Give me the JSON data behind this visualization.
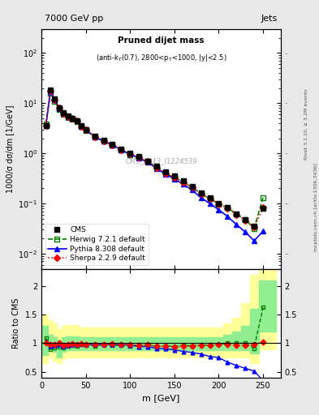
{
  "title_main": "Pruned dijet mass",
  "title_sub": "(anti-k_{T}(0.7), 2800<p_{T}<1000, |y|<2.5)",
  "header_left": "7000 GeV pp",
  "header_right": "Jets",
  "watermark": "CMS_2013_I1224539",
  "ylabel_main": "1000/σ dσ/dm [1/GeV]",
  "ylabel_ratio": "Ratio to CMS",
  "xlabel": "m [GeV]",
  "rivet_label": "Rivet 3.1.10, ≥ 3.2M events",
  "mcplots_label": "mcplots.cern.ch [arXiv:1306.3436]",
  "cms_x": [
    5,
    10,
    15,
    20,
    25,
    30,
    35,
    40,
    45,
    50,
    60,
    70,
    80,
    90,
    100,
    110,
    120,
    130,
    140,
    150,
    160,
    170,
    180,
    190,
    200,
    210,
    220,
    230,
    240,
    250
  ],
  "cms_y": [
    3.5,
    18,
    12,
    8,
    6.5,
    5.5,
    5.0,
    4.5,
    3.5,
    3.0,
    2.2,
    1.8,
    1.5,
    1.2,
    1.0,
    0.85,
    0.7,
    0.55,
    0.42,
    0.35,
    0.28,
    0.22,
    0.16,
    0.13,
    0.1,
    0.082,
    0.062,
    0.048,
    0.035,
    0.08
  ],
  "herwig_x": [
    5,
    10,
    15,
    20,
    25,
    30,
    35,
    40,
    45,
    50,
    60,
    70,
    80,
    90,
    100,
    110,
    120,
    130,
    140,
    150,
    160,
    170,
    180,
    190,
    200,
    210,
    220,
    230,
    240,
    250
  ],
  "herwig_y": [
    3.8,
    16,
    11,
    7.5,
    6.0,
    5.2,
    4.8,
    4.3,
    3.4,
    2.9,
    2.1,
    1.75,
    1.45,
    1.15,
    0.95,
    0.82,
    0.68,
    0.52,
    0.4,
    0.33,
    0.27,
    0.21,
    0.155,
    0.125,
    0.098,
    0.082,
    0.062,
    0.048,
    0.032,
    0.13
  ],
  "pythia_x": [
    5,
    10,
    15,
    20,
    25,
    30,
    35,
    40,
    45,
    50,
    60,
    70,
    80,
    90,
    100,
    110,
    120,
    130,
    140,
    150,
    160,
    170,
    180,
    190,
    200,
    210,
    220,
    230,
    240,
    250
  ],
  "pythia_y": [
    3.6,
    17,
    11.5,
    7.8,
    6.2,
    5.3,
    4.9,
    4.4,
    3.45,
    2.95,
    2.15,
    1.76,
    1.47,
    1.17,
    0.97,
    0.8,
    0.66,
    0.5,
    0.38,
    0.31,
    0.24,
    0.185,
    0.13,
    0.1,
    0.075,
    0.055,
    0.038,
    0.027,
    0.018,
    0.028
  ],
  "sherpa_x": [
    5,
    10,
    15,
    20,
    25,
    30,
    35,
    40,
    45,
    50,
    60,
    70,
    80,
    90,
    100,
    110,
    120,
    130,
    140,
    150,
    160,
    170,
    180,
    190,
    200,
    210,
    220,
    230,
    240,
    250
  ],
  "sherpa_y": [
    3.5,
    17.5,
    11.8,
    8.0,
    6.3,
    5.4,
    4.95,
    4.4,
    3.45,
    2.95,
    2.15,
    1.77,
    1.48,
    1.18,
    0.98,
    0.82,
    0.68,
    0.52,
    0.4,
    0.33,
    0.265,
    0.21,
    0.155,
    0.125,
    0.098,
    0.08,
    0.06,
    0.046,
    0.034,
    0.082
  ],
  "herwig_band_lo": [
    0.8,
    0.9,
    0.85,
    0.75,
    0.85,
    0.88,
    0.88,
    0.88,
    0.88,
    0.88,
    0.88,
    0.88,
    0.88,
    0.88,
    0.88,
    0.88,
    0.88,
    0.88,
    0.88,
    0.88,
    0.88,
    0.88,
    0.88,
    0.88,
    0.88,
    0.88,
    0.88,
    0.88,
    0.82,
    1.2
  ],
  "herwig_band_hi": [
    1.3,
    1.15,
    1.1,
    1.05,
    1.1,
    1.12,
    1.12,
    1.12,
    1.1,
    1.1,
    1.1,
    1.1,
    1.1,
    1.1,
    1.1,
    1.1,
    1.1,
    1.1,
    1.1,
    1.1,
    1.1,
    1.1,
    1.1,
    1.1,
    1.1,
    1.15,
    1.2,
    1.3,
    1.6,
    2.1
  ],
  "yellow_band_lo": [
    0.65,
    0.75,
    0.7,
    0.65,
    0.72,
    0.75,
    0.75,
    0.75,
    0.75,
    0.75,
    0.75,
    0.75,
    0.75,
    0.75,
    0.75,
    0.75,
    0.75,
    0.75,
    0.75,
    0.75,
    0.75,
    0.75,
    0.75,
    0.75,
    0.75,
    0.75,
    0.75,
    0.75,
    0.65,
    0.9
  ],
  "yellow_band_hi": [
    1.5,
    1.4,
    1.35,
    1.25,
    1.3,
    1.32,
    1.32,
    1.32,
    1.28,
    1.28,
    1.28,
    1.28,
    1.28,
    1.28,
    1.28,
    1.28,
    1.28,
    1.28,
    1.28,
    1.28,
    1.28,
    1.28,
    1.28,
    1.28,
    1.28,
    1.35,
    1.45,
    1.7,
    2.2,
    2.8
  ],
  "bg_color": "#f0f0f0",
  "plot_bg": "#ffffff"
}
